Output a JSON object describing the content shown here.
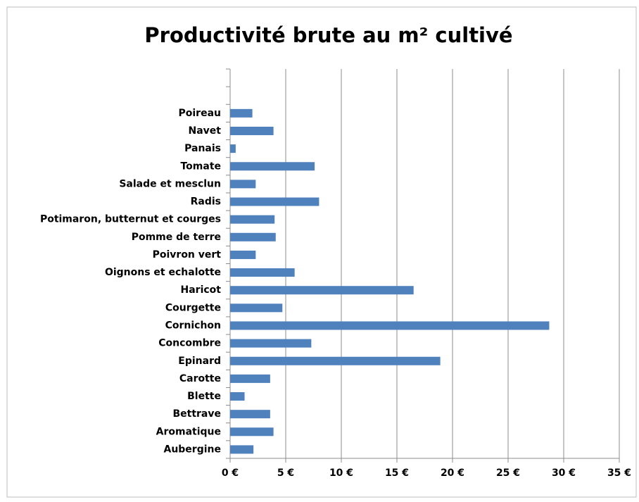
{
  "chart_data": {
    "type": "barh",
    "title": "Productivité brute au m² cultivé",
    "categories": [
      "Aubergine",
      "Aromatique",
      "Bettrave",
      "Blette",
      "Carotte",
      "Epinard",
      "Concombre",
      "Cornichon",
      "Courgette",
      "Haricot",
      "Oignons et echalotte",
      "Poivron vert",
      "Pomme de terre",
      "Potimaron, butternut et  courges",
      "Radis",
      "Salade et mesclun",
      "Tomate",
      "Panais",
      "Navet",
      "Poireau",
      null,
      null
    ],
    "values": [
      2.1,
      3.9,
      3.6,
      1.3,
      3.6,
      18.9,
      7.3,
      28.7,
      4.7,
      16.5,
      5.8,
      2.3,
      4.1,
      4.0,
      8.0,
      2.3,
      7.6,
      0.5,
      3.9,
      2.0,
      null,
      null
    ],
    "color": "#4f81bd",
    "xlim": [
      0,
      35
    ],
    "xticks": [
      {
        "value": 0,
        "label": "0 €"
      },
      {
        "value": 5,
        "label": "5 €"
      },
      {
        "value": 10,
        "label": "10 €"
      },
      {
        "value": 15,
        "label": "15 €"
      },
      {
        "value": 20,
        "label": "20 €"
      },
      {
        "value": 25,
        "label": "25 €"
      },
      {
        "value": 30,
        "label": "30 €"
      },
      {
        "value": 35,
        "label": "35 €"
      }
    ],
    "grid": true
  }
}
